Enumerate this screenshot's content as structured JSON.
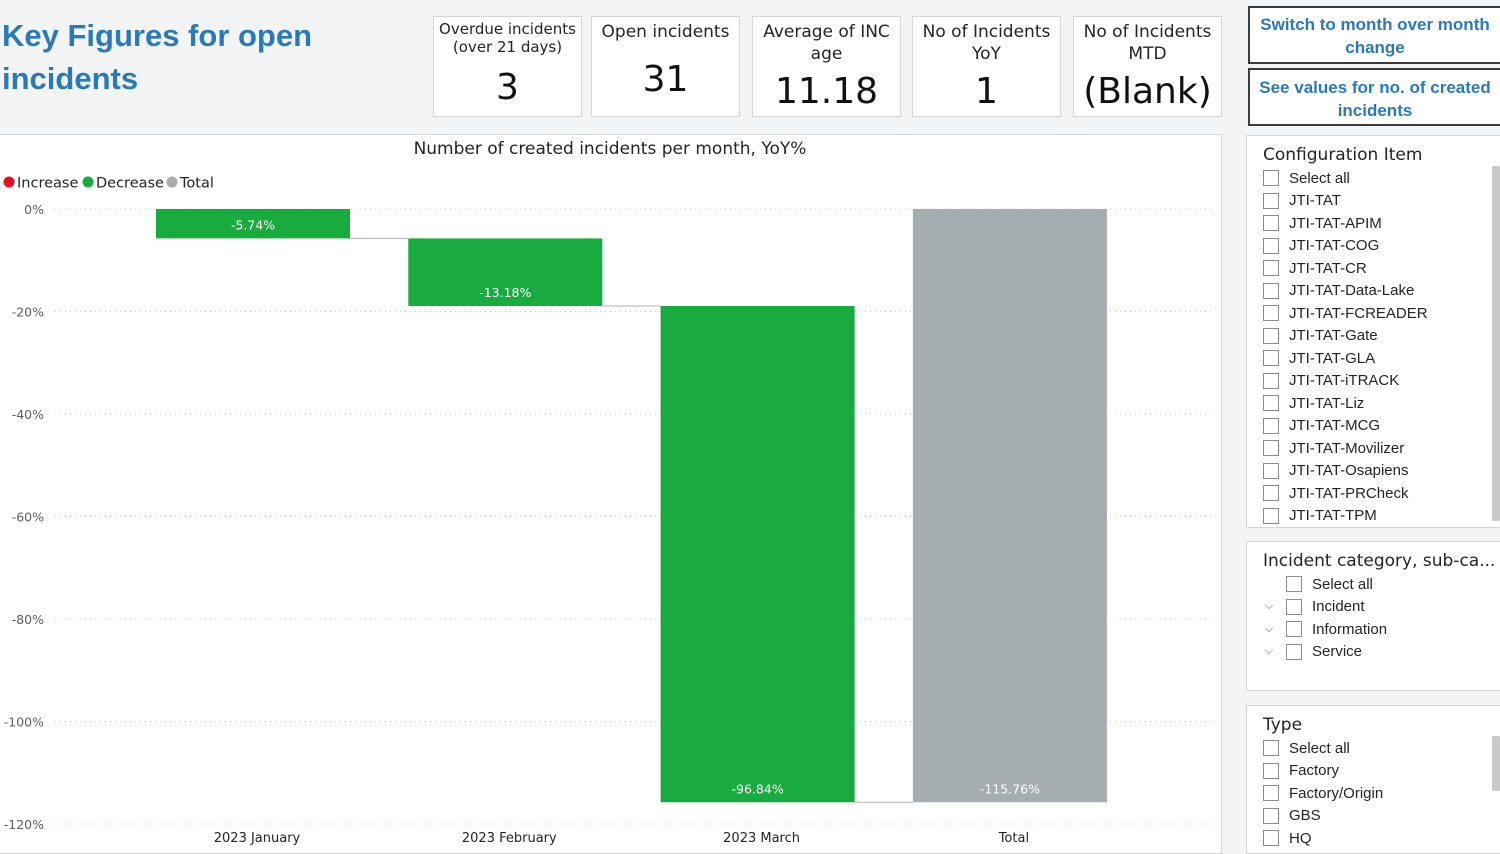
{
  "page": {
    "title": "Key Figures for open incidents"
  },
  "kpis": [
    {
      "label": "Overdue incidents\n(over 21 days)",
      "value": "3"
    },
    {
      "label": "Open incidents",
      "value": "31"
    },
    {
      "label": "Average of INC age",
      "value": "11.18"
    },
    {
      "label": "No of Incidents YoY",
      "value": "1"
    },
    {
      "label": "No of Incidents MTD",
      "value": "(Blank)"
    }
  ],
  "buttons": {
    "switch_label": "Switch to month over month change",
    "created_label": "See values for no. of created incidents"
  },
  "chart_data": {
    "type": "bar",
    "subtype": "waterfall",
    "title": "Number of created incidents per month, YoY%",
    "categories": [
      "2023 January",
      "2023 February",
      "2023 March",
      "Total"
    ],
    "values": [
      -5.74,
      -13.18,
      -96.84,
      -115.76
    ],
    "data_labels": [
      "-5.74%",
      "-13.18%",
      "-96.84%",
      "-115.76%"
    ],
    "kinds": [
      "decrease",
      "decrease",
      "decrease",
      "total"
    ],
    "legend": [
      {
        "name": "Increase",
        "color": "#e81123"
      },
      {
        "name": "Decrease",
        "color": "#1aab40"
      },
      {
        "name": "Total",
        "color": "#a6adb0"
      }
    ],
    "legend_position": "top-left",
    "ylim": [
      -120,
      0
    ],
    "yticks": [
      0,
      -20,
      -40,
      -60,
      -80,
      -100,
      -120
    ],
    "ytick_labels": [
      "0%",
      "-20%",
      "-40%",
      "-60%",
      "-80%",
      "-100%",
      "-120%"
    ],
    "grid": true
  },
  "slicers": {
    "config_item": {
      "title": "Configuration Item",
      "items": [
        "Select all",
        "JTI-TAT",
        "JTI-TAT-APIM",
        "JTI-TAT-COG",
        "JTI-TAT-CR",
        "JTI-TAT-Data-Lake",
        "JTI-TAT-FCREADER",
        "JTI-TAT-Gate",
        "JTI-TAT-GLA",
        "JTI-TAT-iTRACK",
        "JTI-TAT-Liz",
        "JTI-TAT-MCG",
        "JTI-TAT-Movilizer",
        "JTI-TAT-Osapiens",
        "JTI-TAT-PRCheck",
        "JTI-TAT-TPM"
      ]
    },
    "incident_category": {
      "title": "Incident category, sub-ca...",
      "items": [
        {
          "label": "Select all",
          "expandable": false
        },
        {
          "label": "Incident",
          "expandable": true
        },
        {
          "label": "Information",
          "expandable": true
        },
        {
          "label": "Service",
          "expandable": true
        }
      ]
    },
    "type": {
      "title": "Type",
      "items": [
        "Select all",
        "Factory",
        "Factory/Origin",
        "GBS",
        "HQ"
      ]
    }
  }
}
